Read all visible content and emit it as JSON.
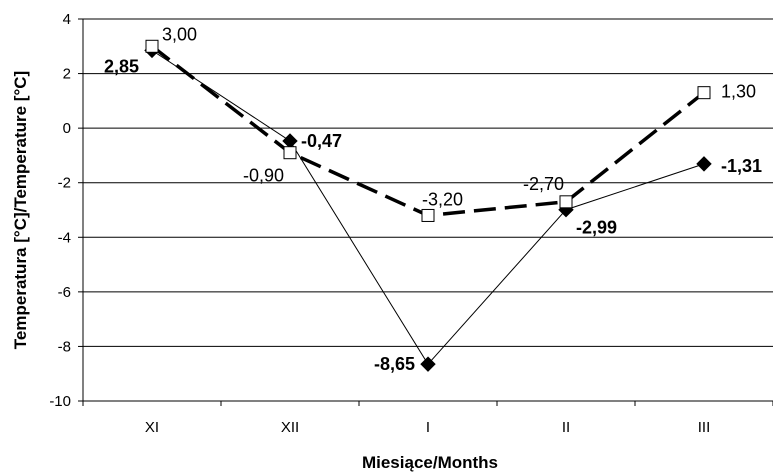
{
  "chart_data": {
    "type": "line",
    "xlabel": "Miesiące/Months",
    "ylabel": "Temperatura [°C]/Temperature [°C]",
    "ylim": [
      -10,
      4
    ],
    "yticks": [
      "4",
      "2",
      "0",
      "-2",
      "-4",
      "-6",
      "-8",
      "-10"
    ],
    "ytick_values": [
      4,
      2,
      0,
      -2,
      -4,
      -6,
      -8,
      -10
    ],
    "categories": [
      "XI",
      "XII",
      "I",
      "II",
      "III"
    ],
    "grid": "horizontal",
    "series": [
      {
        "marker": "open-square",
        "line_style": "dashed",
        "color": "#000000",
        "values": [
          3.0,
          -0.9,
          -3.2,
          -2.7,
          1.3
        ],
        "labels": [
          "3,00",
          "-0,90",
          "-3,20",
          "-2,70",
          "1,30"
        ]
      },
      {
        "marker": "filled-diamond",
        "line_style": "solid",
        "color": "#000000",
        "values": [
          2.85,
          -0.47,
          -8.65,
          -2.99,
          -1.31
        ],
        "labels": [
          "2,85",
          "-0,47",
          "-8,65",
          "-2,99",
          "-1,31"
        ]
      }
    ]
  }
}
